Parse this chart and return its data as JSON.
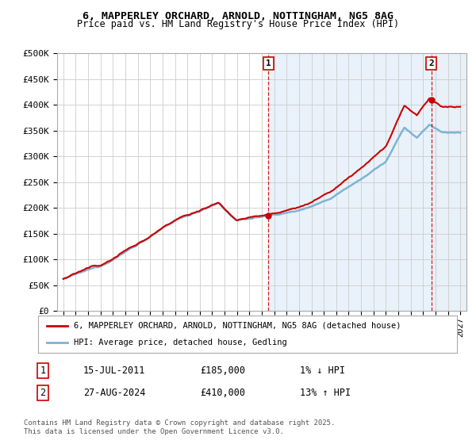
{
  "title": "6, MAPPERLEY ORCHARD, ARNOLD, NOTTINGHAM, NG5 8AG",
  "subtitle": "Price paid vs. HM Land Registry's House Price Index (HPI)",
  "ylim": [
    0,
    500000
  ],
  "yticks": [
    0,
    50000,
    100000,
    150000,
    200000,
    250000,
    300000,
    350000,
    400000,
    450000,
    500000
  ],
  "ytick_labels": [
    "£0",
    "£50K",
    "£100K",
    "£150K",
    "£200K",
    "£250K",
    "£300K",
    "£350K",
    "£400K",
    "£450K",
    "£500K"
  ],
  "xlim_start": 1994.5,
  "xlim_end": 2027.5,
  "xtick_years": [
    1995,
    1996,
    1997,
    1998,
    1999,
    2000,
    2001,
    2002,
    2003,
    2004,
    2005,
    2006,
    2007,
    2008,
    2009,
    2010,
    2011,
    2012,
    2013,
    2014,
    2015,
    2016,
    2017,
    2018,
    2019,
    2020,
    2021,
    2022,
    2023,
    2024,
    2025,
    2026,
    2027
  ],
  "sale1_x": 2011.54,
  "sale1_y": 185000,
  "sale1_label": "1",
  "sale2_x": 2024.66,
  "sale2_y": 410000,
  "sale2_label": "2",
  "line_color_property": "#cc0000",
  "line_color_hpi": "#7fb3d3",
  "grid_color": "#cccccc",
  "background_color": "#ffffff",
  "shade_color": "#ddeeff",
  "hatch_color": "#ccddee",
  "legend_line1": "6, MAPPERLEY ORCHARD, ARNOLD, NOTTINGHAM, NG5 8AG (detached house)",
  "legend_line2": "HPI: Average price, detached house, Gedling",
  "annotation1_date": "15-JUL-2011",
  "annotation1_price": "£185,000",
  "annotation1_hpi": "1% ↓ HPI",
  "annotation2_date": "27-AUG-2024",
  "annotation2_price": "£410,000",
  "annotation2_hpi": "13% ↑ HPI",
  "footnote": "Contains HM Land Registry data © Crown copyright and database right 2025.\nThis data is licensed under the Open Government Licence v3.0."
}
